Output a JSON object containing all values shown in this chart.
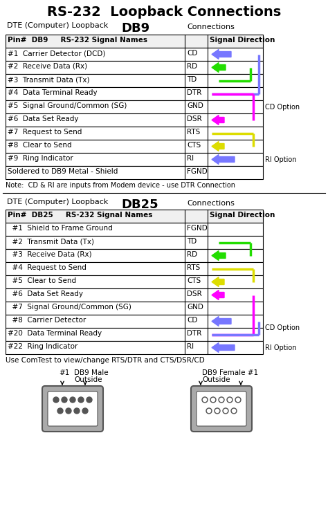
{
  "title": "RS-232  Loopback Connections",
  "background_color": "#ffffff",
  "db9_label": "DTE (Computer) Loopback",
  "db9_bold": "DB9",
  "db9_connections": "Connections",
  "db9_rows": [
    [
      "#1  Carrier Detector (DCD)",
      "CD"
    ],
    [
      "#2  Receive Data (Rx)",
      "RD"
    ],
    [
      "#3  Transmit Data (Tx)",
      "TD"
    ],
    [
      "#4  Data Terminal Ready",
      "DTR"
    ],
    [
      "#5  Signal Ground/Common (SG)",
      "GND"
    ],
    [
      "#6  Data Set Ready",
      "DSR"
    ],
    [
      "#7  Request to Send",
      "RTS"
    ],
    [
      "#8  Clear to Send",
      "CTS"
    ],
    [
      "#9  Ring Indicator",
      "RI"
    ],
    [
      "Soldered to DB9 Metal - Shield",
      "FGND"
    ]
  ],
  "db9_note": "Note:  CD & RI are inputs from Modem device - use DTR Connection",
  "db25_label": "DTE (Computer) Loopback",
  "db25_bold": "DB25",
  "db25_connections": "Connections",
  "db25_rows": [
    [
      "  #1  Shield to Frame Ground",
      "FGND"
    ],
    [
      "  #2  Transmit Data (Tx)",
      "TD"
    ],
    [
      "  #3  Receive Data (Rx)",
      "RD"
    ],
    [
      "  #4  Request to Send",
      "RTS"
    ],
    [
      "  #5  Clear to Send",
      "CTS"
    ],
    [
      "  #6  Data Set Ready",
      "DSR"
    ],
    [
      "  #7  Signal Ground/Common (SG)",
      "GND"
    ],
    [
      "  #8  Carrier Detector",
      "CD"
    ],
    [
      "#20  Data Terminal Ready",
      "DTR"
    ],
    [
      "#22  Ring Indicator",
      "RI"
    ]
  ],
  "db25_note": "Use ComTest to view/change RTS/DTR and CTS/DSR/CD",
  "cg": "#22dd00",
  "cb": "#7777ff",
  "cp": "#ff00ff",
  "cy": "#dddd00"
}
